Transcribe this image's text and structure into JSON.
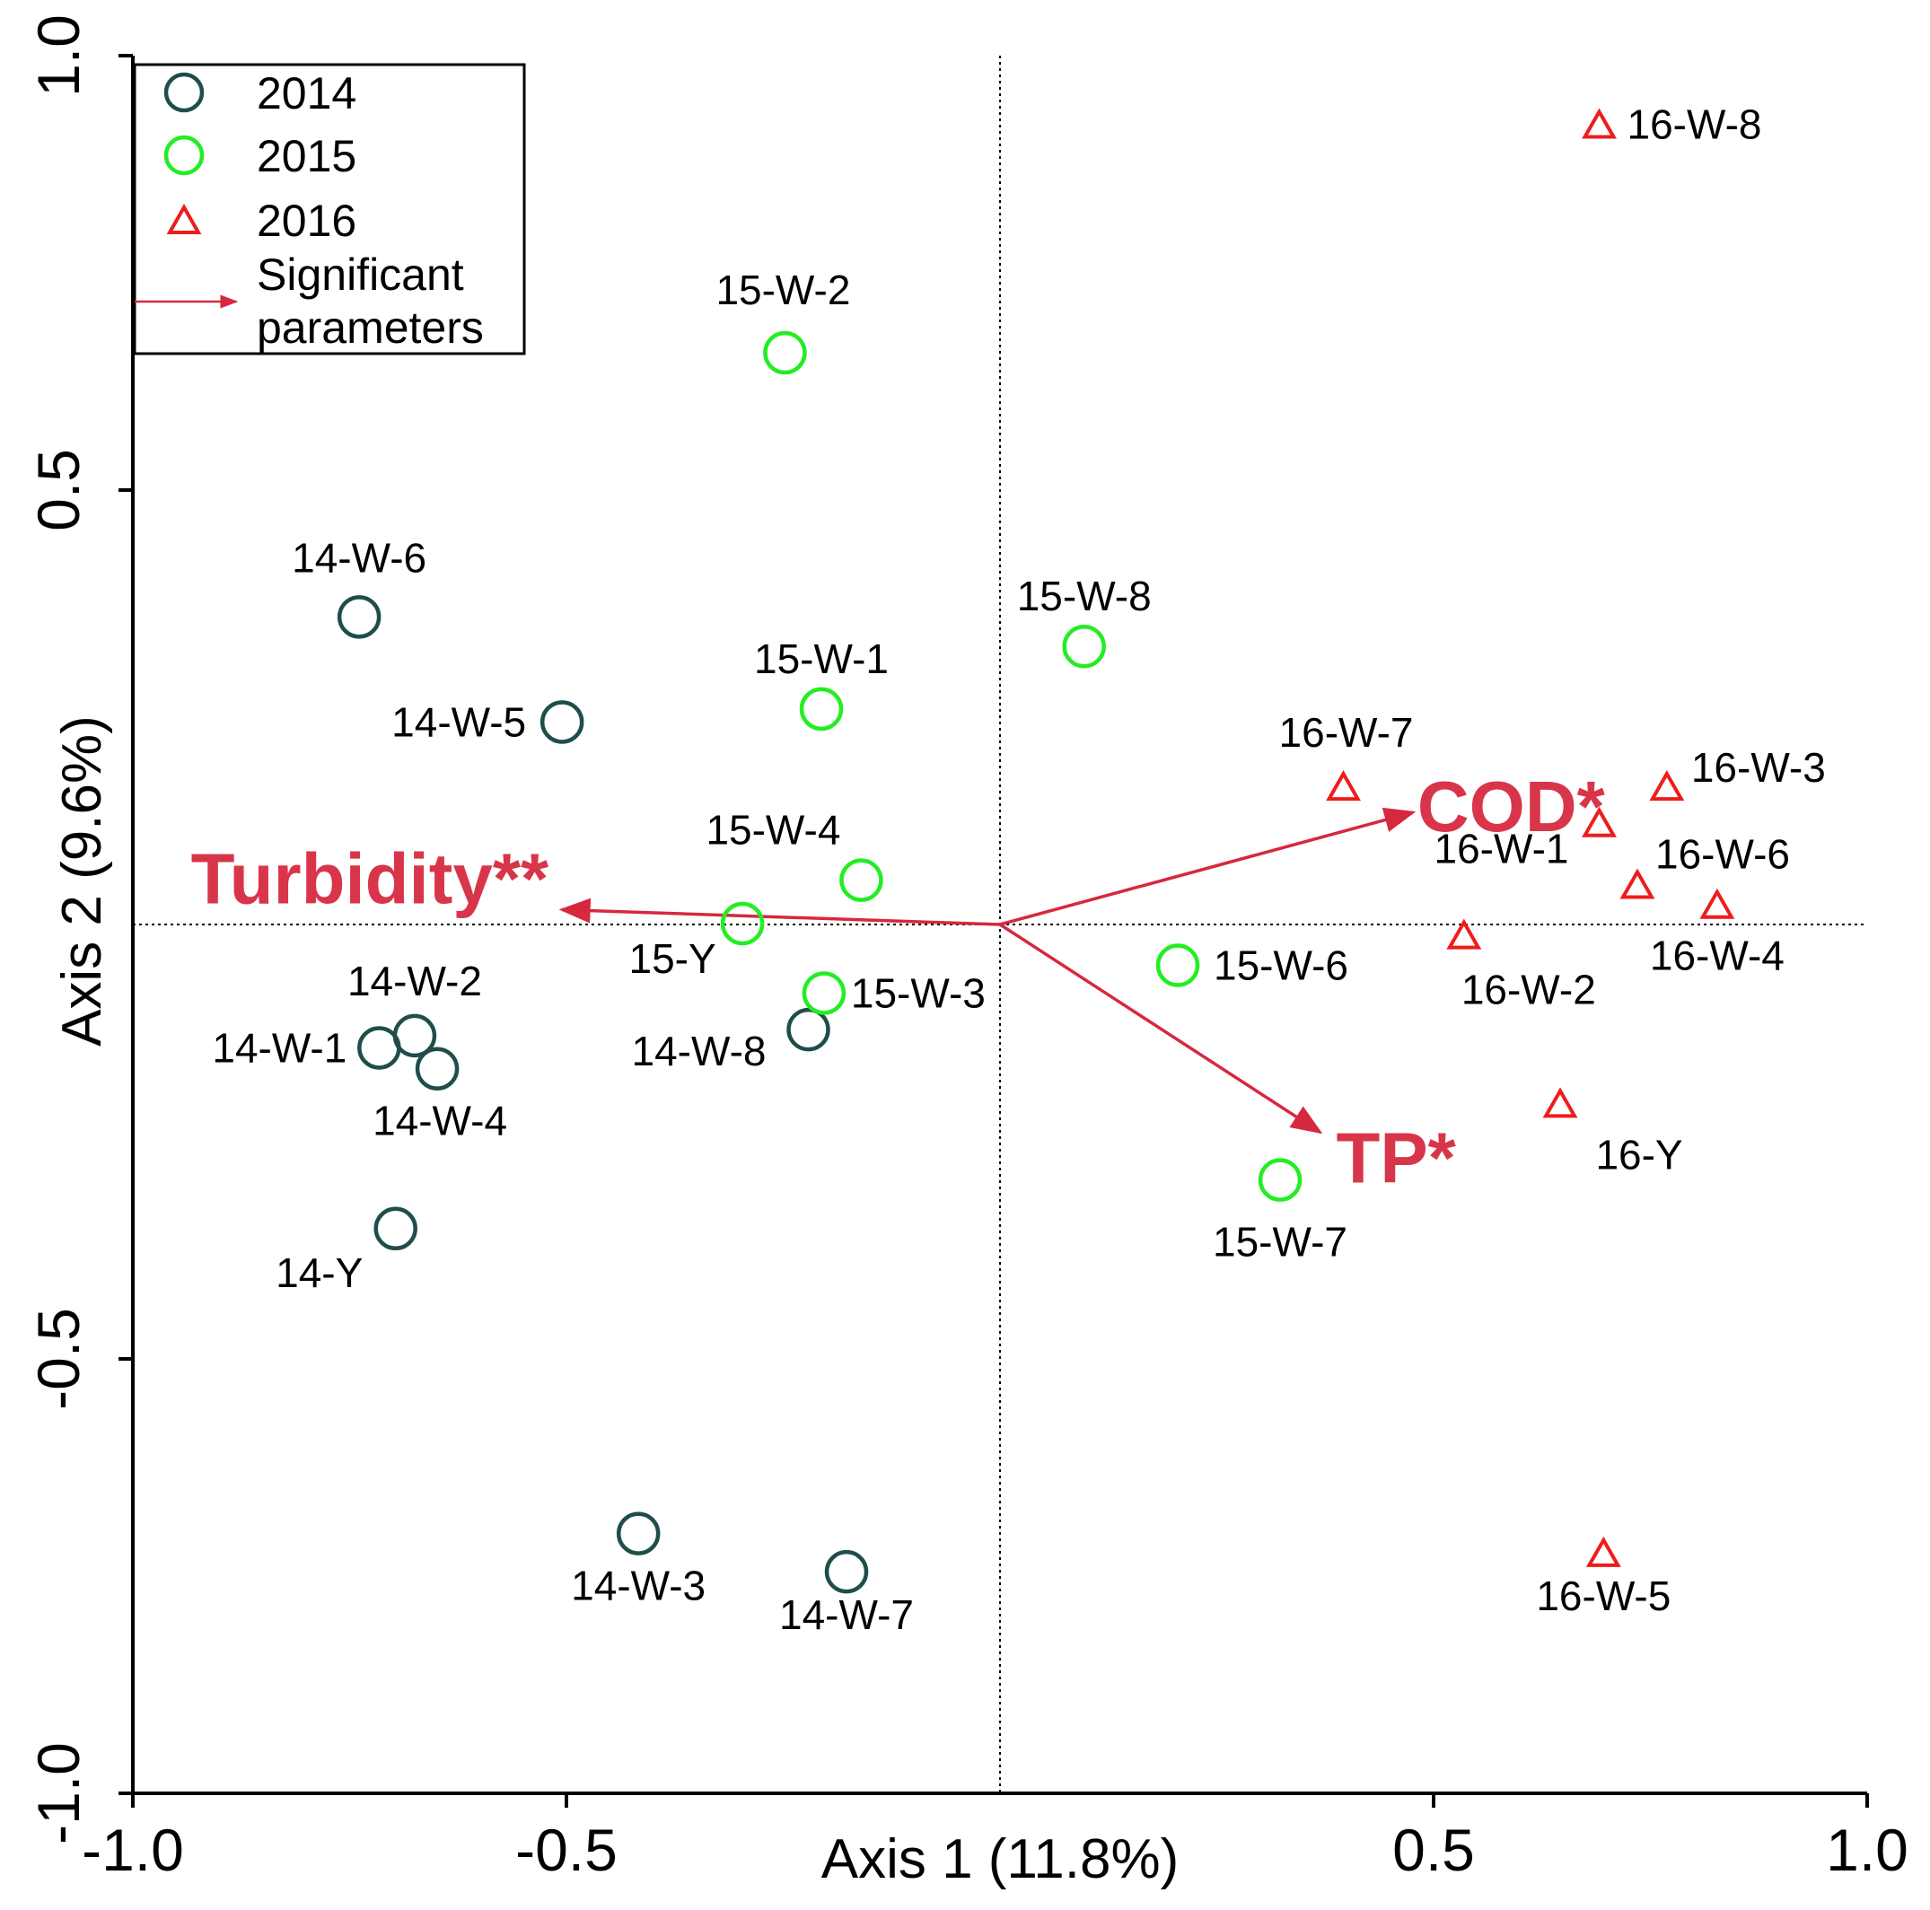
{
  "chart_data": {
    "type": "scatter",
    "title": "",
    "xlabel": "Axis 1 (11.8%)",
    "ylabel": "Axis 2 (9.6%)",
    "xlim": [
      -1.0,
      1.0
    ],
    "ylim": [
      -1.0,
      1.0
    ],
    "xticks": [
      -1.0,
      -0.5,
      0.5,
      1.0
    ],
    "yticks": [
      1.0,
      0.5,
      -0.5,
      -1.0
    ],
    "xtick_labels": [
      "-1.0",
      "-0.5",
      "0.5",
      "1.0"
    ],
    "ytick_labels": [
      "1.0",
      "0.5",
      "-0.5",
      "-1.0"
    ],
    "zero_lines": true,
    "legend_position": "top-left",
    "colors": {
      "2014": "#1f4e4a",
      "2015": "#22ee22",
      "2016": "#ee1c1c",
      "vector": "#d6283f",
      "vector_label": "#d9354a"
    },
    "legend": [
      {
        "label": "2014",
        "marker": "circle",
        "color": "#1f4e4a"
      },
      {
        "label": "2015",
        "marker": "circle",
        "color": "#22ee22"
      },
      {
        "label": "2016",
        "marker": "triangle",
        "color": "#ee1c1c"
      },
      {
        "label_lines": [
          "Significant",
          "parameters"
        ],
        "marker": "arrow",
        "color": "#ff6b6b"
      }
    ],
    "series": [
      {
        "name": "2014",
        "marker": "circle",
        "points": [
          {
            "label": "14-W-6",
            "x": -0.739,
            "y": 0.354
          },
          {
            "label": "14-W-5",
            "x": -0.505,
            "y": 0.233
          },
          {
            "label": "14-W-2",
            "x": -0.675,
            "y": -0.128
          },
          {
            "label": "14-W-1",
            "x": -0.716,
            "y": -0.142
          },
          {
            "label": "14-W-4",
            "x": -0.649,
            "y": -0.166
          },
          {
            "label": "14-W-8",
            "x": -0.221,
            "y": -0.121
          },
          {
            "label": "14-Y",
            "x": -0.697,
            "y": -0.35
          },
          {
            "label": "14-W-3",
            "x": -0.417,
            "y": -0.701
          },
          {
            "label": "14-W-7",
            "x": -0.177,
            "y": -0.745
          }
        ]
      },
      {
        "name": "2015",
        "marker": "circle",
        "points": [
          {
            "label": "15-W-2",
            "x": -0.248,
            "y": 0.658
          },
          {
            "label": "15-W-1",
            "x": -0.206,
            "y": 0.248
          },
          {
            "label": "15-W-8",
            "x": 0.097,
            "y": 0.32
          },
          {
            "label": "15-W-4",
            "x": -0.16,
            "y": 0.051
          },
          {
            "label": "15-Y",
            "x": -0.297,
            "y": 0.001
          },
          {
            "label": "15-W-3",
            "x": -0.203,
            "y": -0.079
          },
          {
            "label": "15-W-6",
            "x": 0.205,
            "y": -0.047
          },
          {
            "label": "15-W-7",
            "x": 0.323,
            "y": -0.294
          }
        ]
      },
      {
        "name": "2016",
        "marker": "triangle",
        "points": [
          {
            "label": "16-W-8",
            "x": 0.691,
            "y": 0.921
          },
          {
            "label": "16-W-7",
            "x": 0.396,
            "y": 0.159
          },
          {
            "label": "16-W-3",
            "x": 0.769,
            "y": 0.159
          },
          {
            "label": "16-W-1",
            "x": 0.691,
            "y": 0.117
          },
          {
            "label": "16-W-6",
            "x": 0.735,
            "y": 0.046
          },
          {
            "label": "16-W-4",
            "x": 0.827,
            "y": 0.023
          },
          {
            "label": "16-W-2",
            "x": 0.535,
            "y": -0.012
          },
          {
            "label": "16-Y",
            "x": 0.646,
            "y": -0.206
          },
          {
            "label": "16-W-5",
            "x": 0.696,
            "y": -0.723
          }
        ]
      }
    ],
    "vectors": [
      {
        "label": "Turbidity**",
        "x": -0.505,
        "y": 0.017
      },
      {
        "label": "COD*",
        "x": 0.476,
        "y": 0.129
      },
      {
        "label": "TP*",
        "x": 0.369,
        "y": -0.239
      }
    ]
  }
}
